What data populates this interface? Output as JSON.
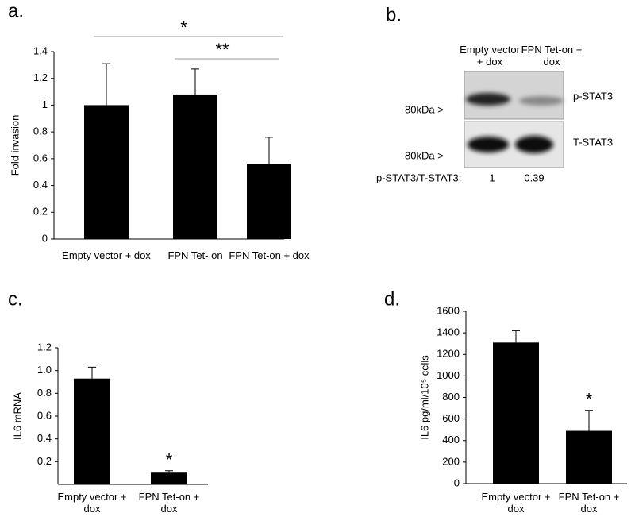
{
  "chart_data": [
    {
      "type": "bar",
      "label": "a.",
      "y_label": "Fold invasion",
      "categories": [
        "Empty vector + dox",
        "FPN Tet- on",
        "FPN Tet-on + dox"
      ],
      "values": [
        1.0,
        1.08,
        0.56
      ],
      "errors": [
        0.31,
        0.19,
        0.2
      ],
      "color": "#000000",
      "ylim": [
        0,
        1.4
      ],
      "yticks": [
        0,
        0.2,
        0.4,
        0.6,
        0.8,
        1,
        1.2,
        1.4
      ],
      "significance": [
        "*",
        "**"
      ]
    },
    {
      "type": "bar",
      "label": "c.",
      "y_label": "IL6 mRNA",
      "categories": [
        "Empty vector + dox",
        "FPN Tet-on + dox"
      ],
      "values": [
        0.93,
        0.11
      ],
      "errors": [
        0.1,
        0.01
      ],
      "color": "#000000",
      "ylim": [
        0,
        1.2
      ],
      "yticks": [
        0.2,
        0.4,
        0.6,
        0.8,
        {
          "value": 1,
          "label": "1.0"
        },
        1.2
      ],
      "significance": [
        null,
        "*"
      ]
    },
    {
      "type": "bar",
      "label": "d.",
      "y_label": "IL6 pg/ml/10⁵ cells",
      "categories": [
        "Empty vector + dox",
        "FPN Tet-on + dox"
      ],
      "values": [
        1310,
        490
      ],
      "errors": [
        110,
        190
      ],
      "color": "#000000",
      "ylim": [
        0,
        1600
      ],
      "yticks": [
        0,
        200,
        400,
        600,
        800,
        1000,
        1200,
        1400,
        1600
      ],
      "significance": [
        null,
        "*"
      ]
    }
  ],
  "blot": {
    "label": "b.",
    "lanes": [
      "Empty vector + dox",
      "FPN Tet-on + dox"
    ],
    "rows": [
      {
        "name": "p-STAT3",
        "marker": "80kDa >"
      },
      {
        "name": "T-STAT3",
        "marker": "80kDa >"
      }
    ],
    "ratio_label": "p-STAT3/T-STAT3:",
    "ratios": [
      1,
      0.39
    ]
  }
}
